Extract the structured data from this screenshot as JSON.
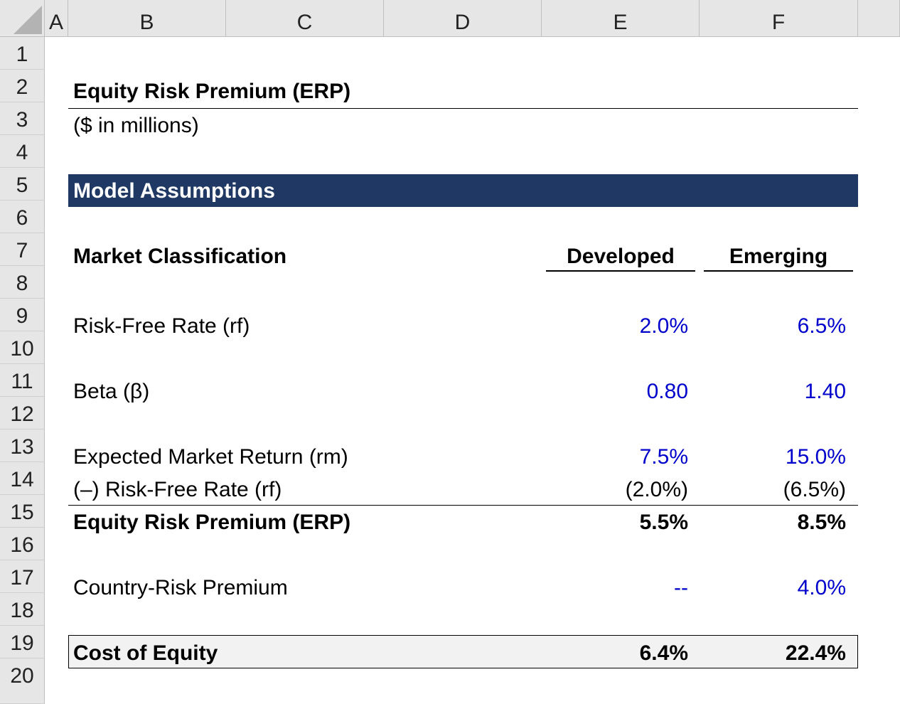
{
  "columns": [
    "A",
    "B",
    "C",
    "D",
    "E",
    "F"
  ],
  "rows": [
    "1",
    "2",
    "3",
    "4",
    "5",
    "6",
    "7",
    "8",
    "9",
    "10",
    "11",
    "12",
    "13",
    "14",
    "15",
    "16",
    "17",
    "18",
    "19",
    "20"
  ],
  "sheet": {
    "title": "Equity Risk Premium (ERP)",
    "subtitle": "($ in millions)",
    "section_header": "Model Assumptions",
    "header_row": {
      "label": "Market Classification",
      "col_e": "Developed",
      "col_f": "Emerging"
    },
    "lines": [
      {
        "label": "Risk-Free Rate (rf)",
        "e": "2.0%",
        "f": "6.5%"
      },
      {
        "label": "Beta (β)",
        "e": "0.80",
        "f": "1.40"
      },
      {
        "label": "Expected Market Return (rm)",
        "e": "7.5%",
        "f": "15.0%"
      },
      {
        "label": "(–) Risk-Free Rate (rf)",
        "e": "(2.0%)",
        "f": "(6.5%)"
      },
      {
        "label": "Equity Risk Premium (ERP)",
        "e": "5.5%",
        "f": "8.5%"
      },
      {
        "label": "Country-Risk Premium",
        "e": "--",
        "f": "4.0%"
      },
      {
        "label": "Cost of Equity",
        "e": "6.4%",
        "f": "22.4%"
      }
    ]
  },
  "colors": {
    "input_blue": "#0000cc",
    "section_fill": "#203864",
    "total_fill": "#f2f2f2"
  }
}
